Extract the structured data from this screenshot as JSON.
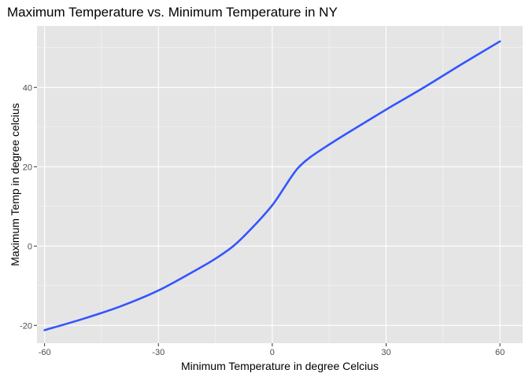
{
  "chart_data": {
    "type": "line",
    "title": "Maximum Temperature vs. Minimum Temperature in NY",
    "xlabel": "Minimum Temperature in degree Celcius",
    "ylabel": "Maximum Temp in degree celcius",
    "xlim": [
      -62,
      66
    ],
    "ylim": [
      -24.5,
      55.5
    ],
    "x_ticks": [
      -60,
      -30,
      0,
      30,
      60
    ],
    "x_tick_labels": [
      "-60",
      "-30",
      "0",
      "30",
      "60"
    ],
    "y_ticks": [
      -20,
      0,
      20,
      40
    ],
    "y_tick_labels": [
      "-20",
      "0",
      "20",
      "40"
    ],
    "grid": true,
    "panel_background": "#e5e5e5",
    "grid_color": "#ffffff",
    "series": [
      {
        "color": "#3355ff",
        "x": [
          -60,
          -50,
          -40,
          -30,
          -20,
          -15,
          -10,
          -5,
          0,
          3,
          5,
          7,
          10,
          15,
          20,
          30,
          40,
          50,
          60
        ],
        "y": [
          -21.2,
          -18.4,
          -15.2,
          -11.2,
          -6.0,
          -3.2,
          0.2,
          4.9,
          10.3,
          14.5,
          17.4,
          19.9,
          22.4,
          25.6,
          28.6,
          34.4,
          40.0,
          45.9,
          51.6
        ]
      }
    ]
  }
}
